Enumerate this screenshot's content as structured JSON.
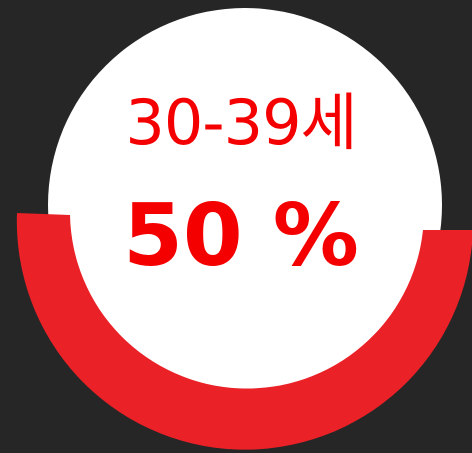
{
  "widget": {
    "age_group": "30-39세",
    "percent_text": "50 %",
    "percent_value": 50
  },
  "colors": {
    "background": "#262626",
    "ring": "#ea2127",
    "disc": "#ffffff",
    "text": "#f50000"
  }
}
